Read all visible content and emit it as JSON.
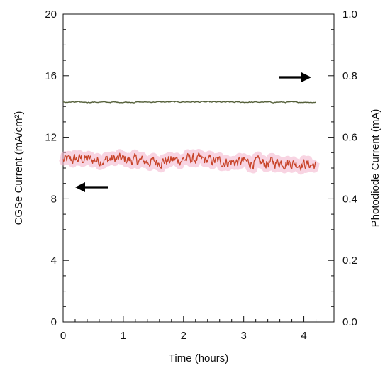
{
  "chart_data": {
    "type": "line",
    "title": "",
    "xlabel": "Time (hours)",
    "ylabel_left": "CGSe Current (mA/cm²)",
    "ylabel_right": "Photodiode Current (mA)",
    "xlim": [
      0,
      4.5
    ],
    "ylim_left": [
      0,
      20
    ],
    "ylim_right": [
      0.0,
      1.0
    ],
    "x_ticks": [
      "0",
      "1",
      "2",
      "3",
      "4"
    ],
    "y_ticks_left": [
      "0",
      "4",
      "8",
      "12",
      "16",
      "20"
    ],
    "y_ticks_right": [
      "0.0",
      "0.2",
      "0.4",
      "0.6",
      "0.8",
      "1.0"
    ],
    "grid": false,
    "legend": "none",
    "annotations": [
      {
        "type": "arrow",
        "direction": "left",
        "points_to": "left axis (CGSe current series)"
      },
      {
        "type": "arrow",
        "direction": "right",
        "points_to": "right axis (photodiode current series)"
      }
    ],
    "series": [
      {
        "axis": "left",
        "color": "#c8442a",
        "highlight_color": "#f3b8cf",
        "x_range": [
          0,
          4.2
        ],
        "mean": 10.4,
        "noise_amplitude": 0.4,
        "x": [
          0,
          0.3,
          0.6,
          0.9,
          1.2,
          1.5,
          1.8,
          2.1,
          2.4,
          2.7,
          3.0,
          3.3,
          3.6,
          3.9,
          4.2
        ],
        "values": [
          10.5,
          10.6,
          10.5,
          10.6,
          10.5,
          10.4,
          10.5,
          10.6,
          10.5,
          10.4,
          10.4,
          10.3,
          10.4,
          10.3,
          10.2
        ]
      },
      {
        "axis": "right",
        "color": "#55603a",
        "x_range": [
          0,
          4.2
        ],
        "mean": 0.714,
        "noise_amplitude": 0.002,
        "x": [
          0,
          1,
          2,
          3,
          4,
          4.2
        ],
        "values": [
          0.714,
          0.714,
          0.715,
          0.714,
          0.714,
          0.714
        ]
      }
    ]
  }
}
